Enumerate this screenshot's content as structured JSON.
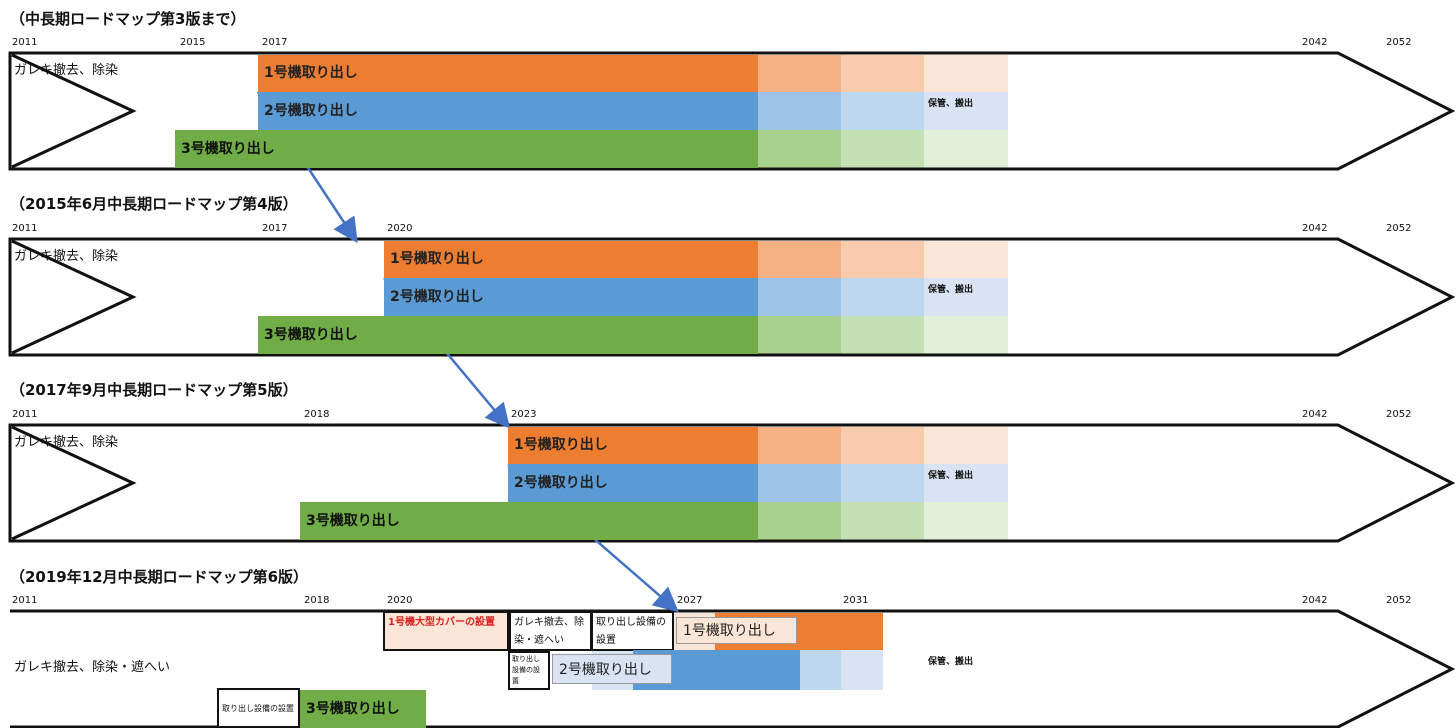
{
  "sections": [
    {
      "heading": "（中長期ロードマップ第3版まで）",
      "years": {
        "start": "2011",
        "a": "2015",
        "b": "2017",
        "y2042": "2042",
        "y2052": "2052"
      },
      "left_label": "ガレキ撤去、除染",
      "unit1": "1号機取り出し",
      "unit2": "2号機取り出し",
      "unit3": "3号機取り出し",
      "storage": "保管、搬出"
    },
    {
      "heading": "（2015年6月中長期ロードマップ第4版）",
      "years": {
        "start": "2011",
        "a": "2017",
        "b": "2020",
        "y2042": "2042",
        "y2052": "2052"
      },
      "left_label": "ガレキ撤去、除染",
      "unit1": "1号機取り出し",
      "unit2": "2号機取り出し",
      "unit3": "3号機取り出し",
      "storage": "保管、搬出"
    },
    {
      "heading": "（2017年9月中長期ロードマップ第5版）",
      "years": {
        "start": "2011",
        "a": "2018",
        "b": "2023",
        "y2042": "2042",
        "y2052": "2052"
      },
      "left_label": "ガレキ撤去、除染",
      "unit1": "1号機取り出し",
      "unit2": "2号機取り出し",
      "unit3": "3号機取り出し",
      "storage": "保管、搬出"
    },
    {
      "heading": "（2019年12月中長期ロードマップ第6版）",
      "years": {
        "start": "2011",
        "a": "2018",
        "b": "2020",
        "c": "2027",
        "d": "2031",
        "y2042": "2042",
        "y2052": "2052"
      },
      "left_label": "ガレキ撤去、除染・遮へい",
      "cover": "1号機大型カバーの設置",
      "rubble": "ガレキ撤去、除染・遮へい",
      "equip": "取り出し設備の設置",
      "equip2": "取り出し設備の設置",
      "equip3": "取り出し設備の設置",
      "unit1": "1号機取り出し",
      "unit2": "2号機取り出し",
      "unit3": "3号機取り出し",
      "storage": "保管、搬出"
    }
  ],
  "colors": {
    "orange": "#ed7d31",
    "blue": "#5b9bd5",
    "green": "#70ad47",
    "arrow": "#4472c4",
    "cover_text": "#e02020"
  }
}
